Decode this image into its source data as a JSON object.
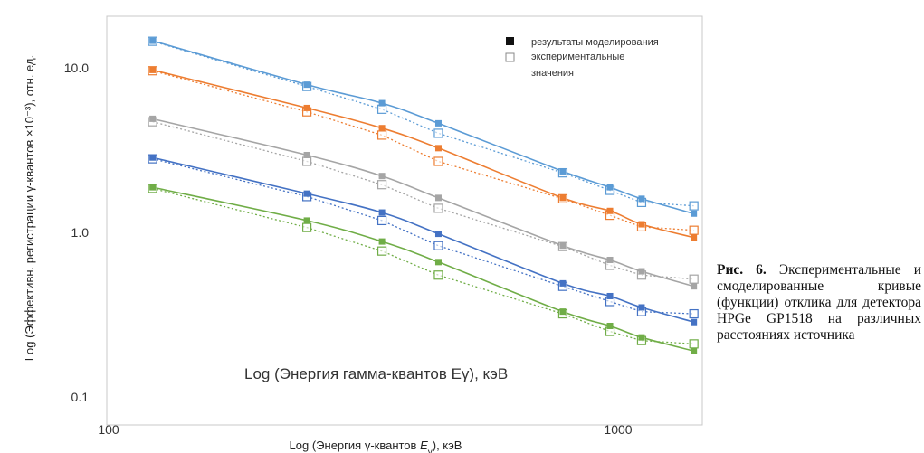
{
  "chart_data": {
    "type": "line",
    "x_scale": "log",
    "y_scale": "log",
    "xlim": [
      100,
      1500
    ],
    "ylim": [
      0.1,
      20
    ],
    "x_ticks": [
      "100",
      "1000"
    ],
    "y_ticks": [
      "0.1",
      "1.0",
      "10.0"
    ],
    "x": [
      122,
      245,
      344,
      444,
      779,
      964,
      1112,
      1408
    ],
    "ylabel": "Log (Эффективн. регистрации γ-квантов ×10⁻³), отн. ед.",
    "xlabel": "Log (Энергия γ-квантов E<sub>γ</sub>), кэВ",
    "inner_label": "Log (Энергия гамма-квантов Eγ), кэВ",
    "legend": {
      "placement": "top-right",
      "simulated": "результаты моделирования",
      "experimental_line1": "экспериментальные",
      "experimental_line2": "значения"
    },
    "series": [
      {
        "color": "#5b9bd5",
        "simulated": [
          14.6,
          7.9,
          6.1,
          4.6,
          2.35,
          1.88,
          1.6,
          1.3
        ],
        "experimental": [
          14.5,
          7.7,
          5.6,
          4.0,
          2.3,
          1.8,
          1.52,
          1.45
        ]
      },
      {
        "color": "#ed7d31",
        "simulated": [
          9.7,
          5.7,
          4.3,
          3.25,
          1.62,
          1.35,
          1.12,
          0.93
        ],
        "experimental": [
          9.6,
          5.4,
          3.9,
          2.7,
          1.6,
          1.27,
          1.08,
          1.03
        ]
      },
      {
        "color": "#a5a5a5",
        "simulated": [
          4.9,
          2.95,
          2.2,
          1.62,
          0.83,
          0.68,
          0.58,
          0.47
        ],
        "experimental": [
          4.7,
          2.7,
          1.95,
          1.4,
          0.82,
          0.63,
          0.55,
          0.52
        ]
      },
      {
        "color": "#4472c4",
        "simulated": [
          2.85,
          1.72,
          1.32,
          0.98,
          0.49,
          0.41,
          0.35,
          0.285
        ],
        "experimental": [
          2.8,
          1.65,
          1.18,
          0.83,
          0.47,
          0.38,
          0.33,
          0.32
        ]
      },
      {
        "color": "#70ad47",
        "simulated": [
          1.88,
          1.18,
          0.88,
          0.66,
          0.33,
          0.27,
          0.23,
          0.19
        ],
        "experimental": [
          1.85,
          1.07,
          0.77,
          0.55,
          0.32,
          0.25,
          0.22,
          0.21
        ]
      }
    ]
  },
  "caption": {
    "figure": "Рис. 6.",
    "text": "Экспериментальные и смоделированные кривые (функции) отклика для детектора HPGe GP1518 на различных расстояниях источника"
  }
}
